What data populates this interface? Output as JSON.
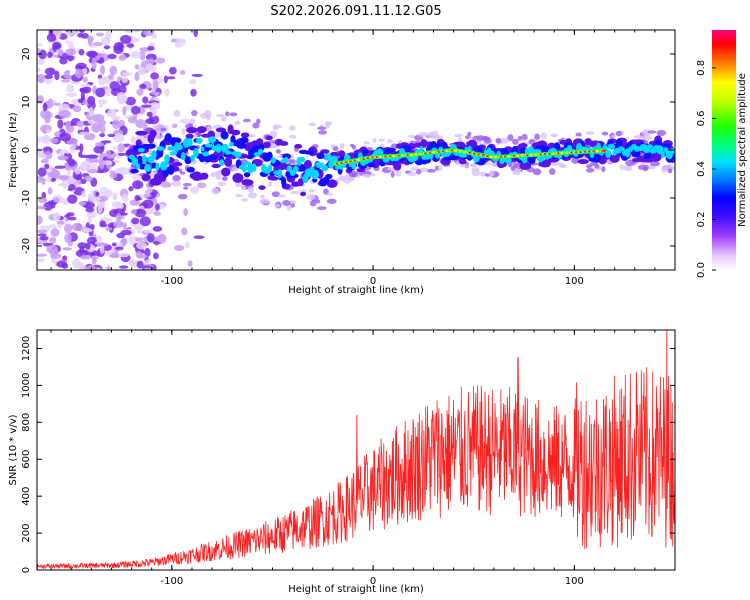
{
  "figure_title": "S202.2026.091.11.12.G05",
  "chart_data": [
    {
      "type": "heatmap",
      "name": "spectrogram",
      "xlabel": "Height of straight line (km)",
      "ylabel": "Frequency (Hz)",
      "xlim": [
        -167,
        150
      ],
      "ylim": [
        -25,
        25
      ],
      "x_ticks": [
        -100,
        0,
        100
      ],
      "y_ticks": [
        -20,
        -10,
        0,
        10,
        20
      ],
      "colorbar": {
        "label": "Normalized spectral amplitude",
        "range": [
          0.0,
          0.95
        ],
        "ticks": [
          "0.0",
          "0.2",
          "0.4",
          "0.6",
          "0.8"
        ],
        "colors": [
          "#ffffff",
          "#e6c8ff",
          "#8a2be2",
          "#3b1cff",
          "#0000ff",
          "#00c8ff",
          "#00ff80",
          "#40ff00",
          "#ffff00",
          "#ff8000",
          "#ff0000",
          "#ff0080"
        ]
      },
      "ridge": {
        "description_points_x": [
          -120,
          -100,
          -80,
          -60,
          -40,
          -20,
          0,
          20,
          40,
          60,
          80,
          100,
          120,
          140,
          150
        ],
        "frequency_hz": [
          -2,
          -1,
          0,
          -2,
          -4,
          -3,
          -1.5,
          -1,
          0,
          -1.5,
          -1,
          -0.5,
          0,
          0,
          -1
        ]
      }
    },
    {
      "type": "line",
      "name": "snr",
      "xlabel": "Height of straight line (km)",
      "ylabel": "SNR (10 * v/v)",
      "xlim": [
        -167,
        150
      ],
      "ylim": [
        0,
        1300
      ],
      "x_ticks": [
        -100,
        0,
        100
      ],
      "y_ticks": [
        0,
        200,
        400,
        600,
        800,
        1000,
        1200
      ],
      "color": "#ff2020",
      "envelope": {
        "x": [
          -167,
          -130,
          -110,
          -90,
          -70,
          -50,
          -30,
          -15,
          -5,
          10,
          30,
          50,
          70,
          90,
          110,
          130,
          150
        ],
        "y": [
          20,
          25,
          40,
          80,
          130,
          180,
          250,
          320,
          400,
          500,
          620,
          650,
          640,
          580,
          560,
          620,
          600
        ]
      },
      "spikes": [
        {
          "x": -8,
          "y": 840
        },
        {
          "x": 72,
          "y": 1150
        },
        {
          "x": 131,
          "y": 1010
        },
        {
          "x": 146,
          "y": 1300
        }
      ]
    }
  ]
}
